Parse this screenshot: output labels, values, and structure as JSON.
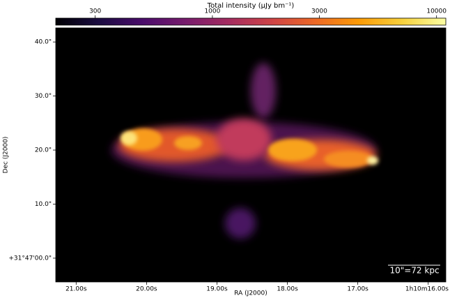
{
  "chart_data": {
    "type": "image",
    "title": "Total intensity (μJy bm⁻¹)",
    "x_label": "RA (J2000)",
    "y_label": "Dec (J2000)",
    "annotation": "10\"=72 kpc",
    "colormap": "inferno",
    "clim": [
      200,
      11000
    ],
    "cscale": "log",
    "cticks": [
      300,
      1000,
      3000,
      10000
    ],
    "xlim": [
      21.29,
      15.75
    ],
    "xticks": [
      {
        "value": 21,
        "label": "21.00s"
      },
      {
        "value": 20,
        "label": "20.00s"
      },
      {
        "value": 19,
        "label": "19.00s"
      },
      {
        "value": 18,
        "label": "18.00s"
      },
      {
        "value": 17,
        "label": "17.00s"
      },
      {
        "value": 16,
        "label": "1h10m16.00s"
      }
    ],
    "ylim": [
      -4.4,
      42.6
    ],
    "yticks": [
      {
        "value": 0,
        "label": "+31°47'00.0\""
      },
      {
        "value": 10,
        "label": "10.0\""
      },
      {
        "value": 20,
        "label": "20.0\""
      },
      {
        "value": 30,
        "label": "30.0\""
      },
      {
        "value": 40,
        "label": "40.0\""
      }
    ]
  }
}
